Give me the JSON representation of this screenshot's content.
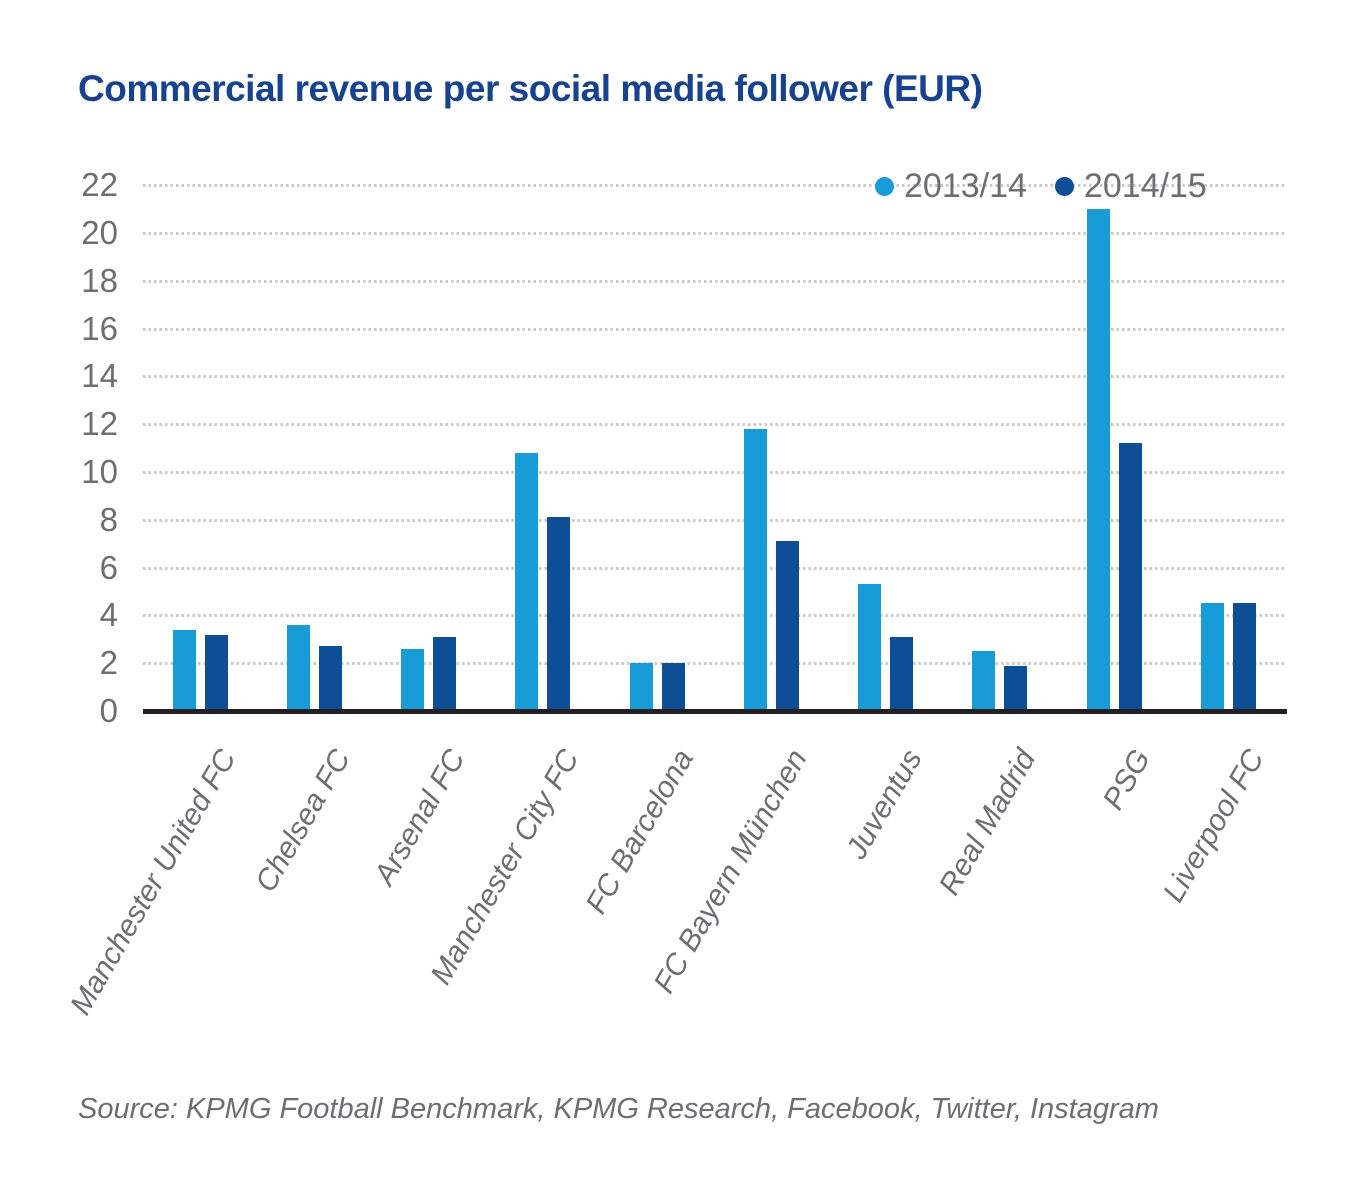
{
  "title": "Commercial revenue per social media follower (EUR)",
  "source": "Source: KPMG Football Benchmark, KPMG Research, Facebook, Twitter, Instagram",
  "colors": {
    "title_blue": "#17428f",
    "series_2013_14": "#189cd8",
    "series_2014_15": "#0d4e96",
    "axis_text_gray": "#6d6e71",
    "gridline_gray": "#c9c9c9",
    "axis_line_black": "#231f20"
  },
  "legend": {
    "position": "top-right",
    "items": [
      {
        "label": "2013/14",
        "color": "#189cd8"
      },
      {
        "label": "2014/15",
        "color": "#0d4e96"
      }
    ]
  },
  "chart_data": {
    "type": "bar",
    "title": "Commercial revenue per social media follower (EUR)",
    "categories": [
      "Manchester United FC",
      "Chelsea FC",
      "Arsenal FC",
      "Manchester City FC",
      "FC Barcelona",
      "FC Bayern München",
      "Juventus",
      "Real Madrid",
      "PSG",
      "Liverpool FC"
    ],
    "series": [
      {
        "name": "2013/14",
        "color": "#189cd8",
        "values": [
          3.4,
          3.6,
          2.6,
          10.8,
          2.0,
          11.8,
          5.3,
          2.5,
          21.0,
          4.5
        ]
      },
      {
        "name": "2014/15",
        "color": "#0d4e96",
        "values": [
          3.2,
          2.7,
          3.1,
          8.1,
          2.0,
          7.1,
          3.1,
          1.9,
          11.2,
          4.5
        ]
      }
    ],
    "xlabel": "",
    "ylabel": "",
    "ylim": [
      0,
      22
    ],
    "ytick_step": 2,
    "y_ticks": [
      0,
      2,
      4,
      6,
      8,
      10,
      12,
      14,
      16,
      18,
      20,
      22
    ],
    "grid": "horizontal-dotted",
    "legend_position": "top-right"
  }
}
